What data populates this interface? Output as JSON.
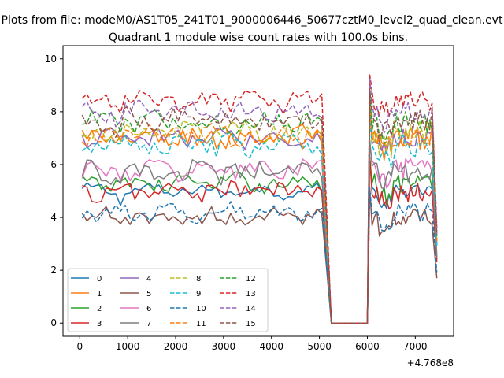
{
  "figure": {
    "suptitle": "Plots from file: modeM0/AS1T05_241T01_9000006446_50677cztM0_level2_quad_clean.evt"
  },
  "chart_data": {
    "type": "line",
    "title": "Quadrant 1 module wise count rates with 100.0s bins.",
    "xlabel": "",
    "ylabel": "",
    "x_offset_label": "+4.768e8",
    "xlim": [
      -350,
      7800
    ],
    "ylim": [
      -0.5,
      10.5
    ],
    "xticks": [
      0,
      1000,
      2000,
      3000,
      4000,
      5000,
      6000,
      7000
    ],
    "yticks": [
      0,
      2,
      4,
      6,
      8,
      10
    ],
    "grid": false,
    "legend_position": "lower-left",
    "legend_columns": 4,
    "gap": {
      "start": 5050,
      "end": 6000,
      "low_start": 5250,
      "low_end": 5950
    },
    "x_range": [
      50,
      7450
    ],
    "series": [
      {
        "name": "0",
        "color": "#1f77b4",
        "dashed": false,
        "level": 5.0,
        "amp": 0.2,
        "end": 2.5
      },
      {
        "name": "1",
        "color": "#ff7f0e",
        "dashed": false,
        "level": 7.0,
        "amp": 0.4,
        "end": 2.9
      },
      {
        "name": "2",
        "color": "#2ca02c",
        "dashed": false,
        "level": 5.3,
        "amp": 0.3,
        "end": 2.4
      },
      {
        "name": "3",
        "color": "#d62728",
        "dashed": false,
        "level": 5.0,
        "amp": 0.35,
        "end": 2.3
      },
      {
        "name": "4",
        "color": "#9467bd",
        "dashed": false,
        "level": 7.0,
        "amp": 0.3,
        "end": 3.0
      },
      {
        "name": "5",
        "color": "#8c564b",
        "dashed": false,
        "level": 4.0,
        "amp": 0.3,
        "end": 1.7
      },
      {
        "name": "6",
        "color": "#e377c2",
        "dashed": false,
        "level": 5.8,
        "amp": 0.35,
        "end": 2.6
      },
      {
        "name": "7",
        "color": "#7f7f7f",
        "dashed": false,
        "level": 5.7,
        "amp": 0.35,
        "end": 2.5
      },
      {
        "name": "8",
        "color": "#bcbd22",
        "dashed": true,
        "level": 7.2,
        "amp": 0.4,
        "end": 3.1
      },
      {
        "name": "9",
        "color": "#17becf",
        "dashed": true,
        "level": 6.7,
        "amp": 0.4,
        "end": 2.9
      },
      {
        "name": "10",
        "color": "#1f77b4",
        "dashed": true,
        "level": 4.2,
        "amp": 0.3,
        "end": 1.9
      },
      {
        "name": "11",
        "color": "#ff7f0e",
        "dashed": true,
        "level": 7.1,
        "amp": 0.4,
        "end": 3.1
      },
      {
        "name": "12",
        "color": "#2ca02c",
        "dashed": true,
        "level": 7.6,
        "amp": 0.35,
        "end": 3.3
      },
      {
        "name": "13",
        "color": "#d62728",
        "dashed": true,
        "level": 8.4,
        "amp": 0.35,
        "end": 3.6
      },
      {
        "name": "14",
        "color": "#9467bd",
        "dashed": true,
        "level": 8.0,
        "amp": 0.3,
        "end": 3.4
      },
      {
        "name": "15",
        "color": "#8c564b",
        "dashed": true,
        "level": 7.7,
        "amp": 0.35,
        "end": 3.3
      }
    ]
  }
}
